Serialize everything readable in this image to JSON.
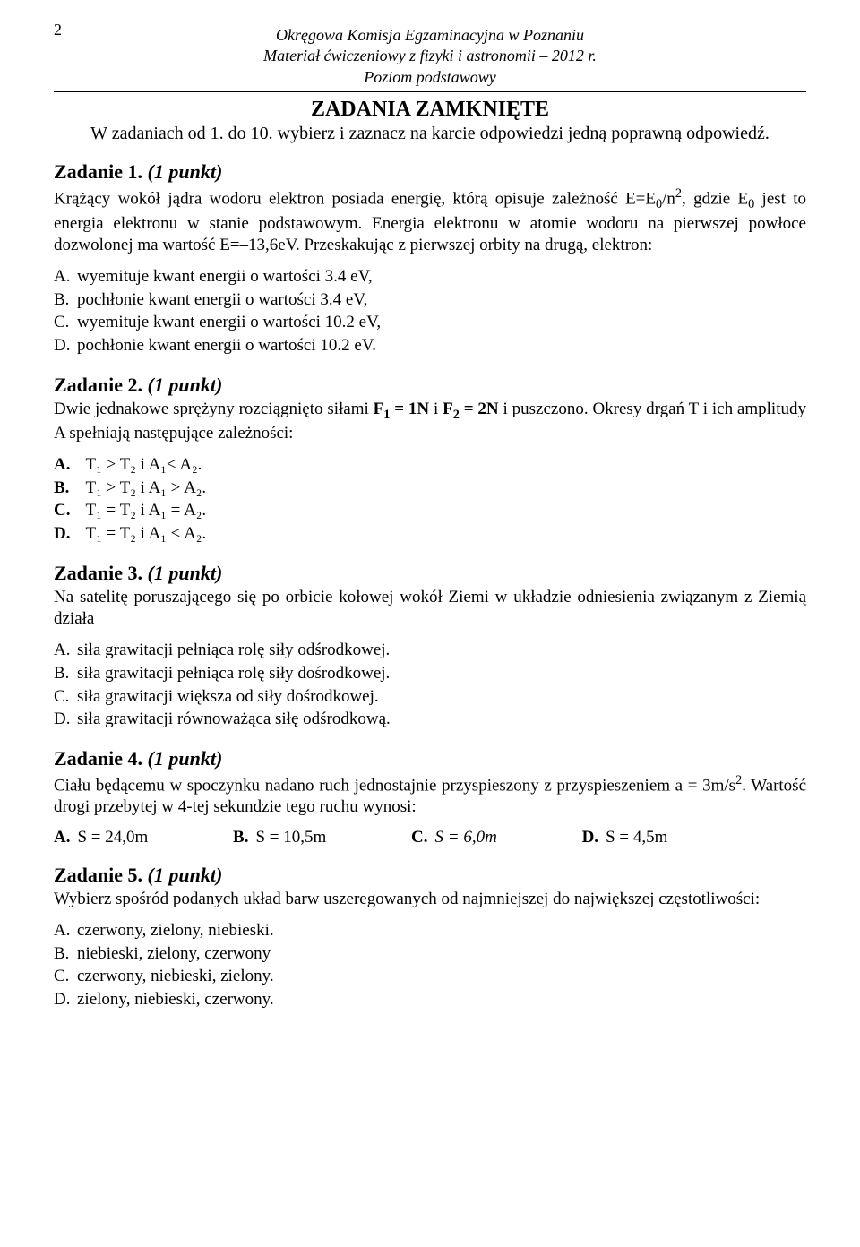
{
  "pageNumber": "2",
  "header": {
    "line1": "Okręgowa Komisja Egzaminacyjna w Poznaniu",
    "line2": "Materiał ćwiczeniowy z fizyki i astronomii – 2012 r.",
    "line3": "Poziom podstawowy"
  },
  "closedTitle": "ZADANIA ZAMKNIĘTE",
  "instruction": "W zadaniach od 1. do 10. wybierz i zaznacz na karcie odpowiedzi jedną poprawną odpowiedź.",
  "task1": {
    "title": "Zadanie 1.",
    "pts": "(1 punkt)",
    "bodyPre": "Krążący wokół jądra wodoru elektron posiada energię, którą opisuje zależność E=E",
    "bodyMid1": "/n",
    "bodyMid2": ", gdzie E",
    "bodyMid3": " jest to energia elektronu w stanie podstawowym. Energia elektronu w atomie wodoru na pierwszej powłoce dozwolonej ma wartość E=–13,6eV. Przeskakując z pierwszej orbity na drugą, elektron:",
    "opts": {
      "A": "wyemituje kwant energii o wartości 3.4 eV,",
      "B": "pochłonie kwant energii o wartości 3.4 eV,",
      "C": "wyemituje kwant energii o wartości 10.2 eV,",
      "D": "pochłonie kwant energii o wartości 10.2 eV."
    }
  },
  "task2": {
    "title": "Zadanie 2.",
    "pts": "(1 punkt)",
    "bodyPre": "Dwie jednakowe sprężyny rozciągnięto siłami ",
    "bodyMid": " i puszczono. Okresy drgań T i ich amplitudy A spełniają następujące zależności:",
    "f1": "F",
    "f1eq": " = 1N",
    "iand": " i ",
    "f2": "F",
    "f2eq": " = 2N",
    "opts": {
      "A": "T₁ > T₂  i  A₁< A₂.",
      "B": "T₁ > T₂  i  A₁ > A₂.",
      "C": "T₁ = T₂  i  A₁ = A₂.",
      "D": "T₁ = T₂  i  A₁ < A₂."
    }
  },
  "task3": {
    "title": "Zadanie 3.",
    "pts": "(1 punkt)",
    "body": "Na satelitę poruszającego się po orbicie kołowej wokół Ziemi w układzie odniesienia związanym z Ziemią działa",
    "opts": {
      "A": "siła grawitacji pełniąca rolę siły odśrodkowej.",
      "B": "siła grawitacji pełniąca rolę siły dośrodkowej.",
      "C": "siła grawitacji większa od siły dośrodkowej.",
      "D": "siła grawitacji równoważąca siłę odśrodkową."
    }
  },
  "task4": {
    "title": "Zadanie 4.",
    "pts": "(1 punkt)",
    "bodyPre": "Ciału będącemu w spoczynku nadano ruch jednostajnie przyspieszony z przyspieszeniem a = 3m/s",
    "bodyPost": ". Wartość drogi przebytej w 4-tej sekundzie tego ruchu wynosi:",
    "opts": {
      "A": "S =  24,0m",
      "B": "S =  10,5m",
      "C": "S =  6,0m",
      "D": "S = 4,5m"
    }
  },
  "task5": {
    "title": "Zadanie 5.",
    "pts": "(1 punkt)",
    "body": "Wybierz spośród podanych układ barw uszeregowanych od najmniejszej do największej częstotliwości:",
    "opts": {
      "A": "czerwony, zielony, niebieski.",
      "B": "niebieski, zielony, czerwony",
      "C": "czerwony, niebieski, zielony.",
      "D": "zielony, niebieski, czerwony."
    }
  }
}
